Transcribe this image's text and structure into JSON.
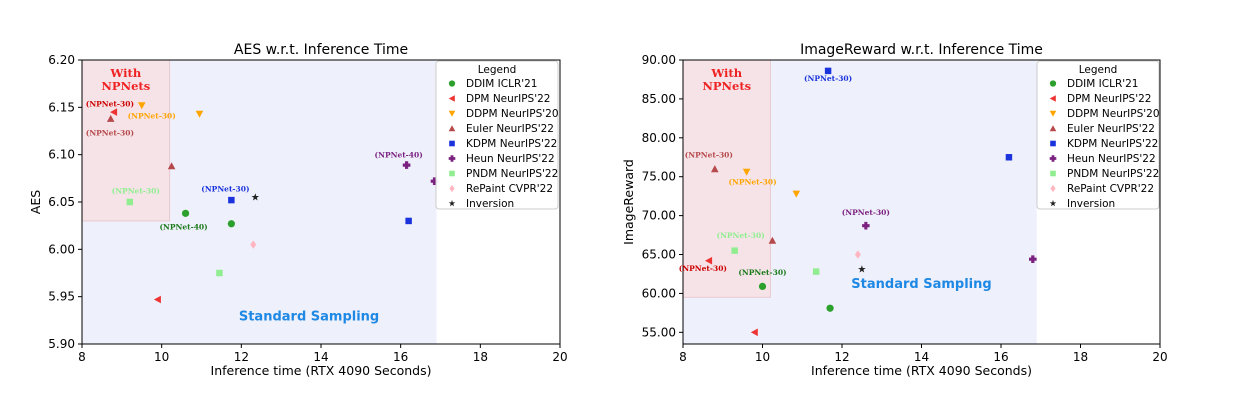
{
  "chart_data": [
    {
      "type": "scatter",
      "title": "AES w.r.t. Inference Time",
      "xlabel": "Inference time (RTX 4090 Seconds)",
      "ylabel": "AES",
      "xlim": [
        8,
        20
      ],
      "ylim": [
        5.9,
        6.2
      ],
      "xticks": [
        8,
        10,
        12,
        14,
        16,
        18,
        20
      ],
      "xtick_labels": [
        "8",
        "10",
        "12",
        "14",
        "16",
        "18",
        "20"
      ],
      "yticks": [
        5.9,
        5.95,
        6.0,
        6.05,
        6.1,
        6.15,
        6.2
      ],
      "ytick_labels": [
        "5.90",
        "5.95",
        "6.00",
        "6.05",
        "6.10",
        "6.15",
        "6.20"
      ],
      "npnet_region": {
        "x": [
          8,
          10.2
        ],
        "y": [
          6.03,
          6.2
        ],
        "label": "With NPNets"
      },
      "standard_region": {
        "x": [
          8,
          16.9
        ],
        "y": [
          5.9,
          6.2
        ],
        "label": "Standard Sampling",
        "label_x": 13.7,
        "label_y": 5.925
      },
      "legend_title": "Legend",
      "series": [
        {
          "name": "DDIM ICLR'21",
          "marker": "circle",
          "color": "#2ca02c",
          "points": [
            {
              "x": 10.6,
              "y": 6.038
            },
            {
              "x": 11.75,
              "y": 6.027
            }
          ]
        },
        {
          "name": "DPM NeurIPS'22",
          "marker": "triangle-left",
          "color": "#ee3333",
          "points": [
            {
              "x": 9.9,
              "y": 5.947
            },
            {
              "x": 8.8,
              "y": 6.145
            }
          ]
        },
        {
          "name": "DDPM NeurIPS'20",
          "marker": "triangle-down",
          "color": "#ffa500",
          "points": [
            {
              "x": 10.95,
              "y": 6.143
            },
            {
              "x": 9.5,
              "y": 6.152
            }
          ]
        },
        {
          "name": "Euler NeurIPS'22",
          "marker": "triangle-up",
          "color": "#b5494b",
          "points": [
            {
              "x": 10.25,
              "y": 6.088
            },
            {
              "x": 8.72,
              "y": 6.138
            }
          ]
        },
        {
          "name": "KDPM NeurIPS'22",
          "marker": "square",
          "color": "#1a33dd",
          "points": [
            {
              "x": 16.2,
              "y": 6.03
            },
            {
              "x": 11.75,
              "y": 6.052
            }
          ]
        },
        {
          "name": "Heun NeurIPS'22",
          "marker": "plus",
          "color": "#7b2180",
          "points": [
            {
              "x": 16.85,
              "y": 6.072
            },
            {
              "x": 16.15,
              "y": 6.089
            }
          ]
        },
        {
          "name": "PNDM NeurIPS'22",
          "marker": "square",
          "color": "#90ee90",
          "points": [
            {
              "x": 11.45,
              "y": 5.975
            },
            {
              "x": 9.2,
              "y": 6.05
            }
          ]
        },
        {
          "name": "RePaint CVPR'22",
          "marker": "diamond",
          "color": "#ffb6c1",
          "points": [
            {
              "x": 12.3,
              "y": 6.005
            }
          ]
        },
        {
          "name": "Inversion",
          "marker": "star",
          "color": "#222222",
          "points": [
            {
              "x": 12.35,
              "y": 6.055
            }
          ]
        }
      ],
      "annotations": [
        {
          "text": "(NPNet-30)",
          "x": 8.7,
          "y": 6.151,
          "color": "#cc0000"
        },
        {
          "text": "(NPNet-30)",
          "x": 8.7,
          "y": 6.12,
          "color": "#b5494b"
        },
        {
          "text": "(NPNet-30)",
          "x": 9.75,
          "y": 6.138,
          "color": "#ffa500"
        },
        {
          "text": "(NPNet-30)",
          "x": 9.35,
          "y": 6.059,
          "color": "#90ee90"
        },
        {
          "text": "(NPNet-30)",
          "x": 11.6,
          "y": 6.061,
          "color": "#1a33dd"
        },
        {
          "text": "(NPNet-40)",
          "x": 10.55,
          "y": 6.021,
          "color": "#1a7a1a"
        },
        {
          "text": "(NPNet-40)",
          "x": 15.95,
          "y": 6.097,
          "color": "#7b2180"
        }
      ]
    },
    {
      "type": "scatter",
      "title": "ImageReward w.r.t. Inference Time",
      "xlabel": "Inference time (RTX 4090 Seconds)",
      "ylabel": "ImageReward",
      "xlim": [
        8,
        20
      ],
      "ylim": [
        53.5,
        90
      ],
      "xticks": [
        8,
        10,
        12,
        14,
        16,
        18,
        20
      ],
      "xtick_labels": [
        "8",
        "10",
        "12",
        "14",
        "16",
        "18",
        "20"
      ],
      "yticks": [
        55,
        60,
        65,
        70,
        75,
        80,
        85,
        90
      ],
      "ytick_labels": [
        "55.00",
        "60.00",
        "65.00",
        "70.00",
        "75.00",
        "80.00",
        "85.00",
        "90.00"
      ],
      "npnet_region": {
        "x": [
          8,
          10.2
        ],
        "y": [
          59.5,
          90
        ],
        "label": "With NPNets"
      },
      "standard_region": {
        "x": [
          8,
          16.9
        ],
        "y": [
          53.5,
          90
        ],
        "label": "Standard Sampling",
        "label_x": 14.0,
        "label_y": 60.7
      },
      "legend_title": "Legend",
      "series": [
        {
          "name": "DDIM ICLR'21",
          "marker": "circle",
          "color": "#2ca02c",
          "points": [
            {
              "x": 11.7,
              "y": 58.1
            },
            {
              "x": 10.0,
              "y": 60.9
            }
          ]
        },
        {
          "name": "DPM NeurIPS'22",
          "marker": "triangle-left",
          "color": "#ee3333",
          "points": [
            {
              "x": 9.8,
              "y": 55.0
            },
            {
              "x": 8.65,
              "y": 64.2
            }
          ]
        },
        {
          "name": "DDPM NeurIPS'20",
          "marker": "triangle-down",
          "color": "#ffa500",
          "points": [
            {
              "x": 10.85,
              "y": 72.8
            },
            {
              "x": 9.6,
              "y": 75.6
            }
          ]
        },
        {
          "name": "Euler NeurIPS'22",
          "marker": "triangle-up",
          "color": "#b5494b",
          "points": [
            {
              "x": 10.25,
              "y": 66.8
            },
            {
              "x": 8.8,
              "y": 76.0
            }
          ]
        },
        {
          "name": "KDPM NeurIPS'22",
          "marker": "square",
          "color": "#1a33dd",
          "points": [
            {
              "x": 16.2,
              "y": 77.5
            },
            {
              "x": 11.65,
              "y": 88.6
            }
          ]
        },
        {
          "name": "Heun NeurIPS'22",
          "marker": "plus",
          "color": "#7b2180",
          "points": [
            {
              "x": 16.8,
              "y": 64.4
            },
            {
              "x": 12.6,
              "y": 68.7
            }
          ]
        },
        {
          "name": "PNDM NeurIPS'22",
          "marker": "square",
          "color": "#90ee90",
          "points": [
            {
              "x": 11.35,
              "y": 62.8
            },
            {
              "x": 9.3,
              "y": 65.5
            }
          ]
        },
        {
          "name": "RePaint CVPR'22",
          "marker": "diamond",
          "color": "#ffb6c1",
          "points": [
            {
              "x": 12.4,
              "y": 65.0
            }
          ]
        },
        {
          "name": "Inversion",
          "marker": "star",
          "color": "#222222",
          "points": [
            {
              "x": 12.5,
              "y": 63.1
            }
          ]
        }
      ],
      "annotations": [
        {
          "text": "(NPNet-30)",
          "x": 11.65,
          "y": 87.3,
          "color": "#1a33dd"
        },
        {
          "text": "(NPNet-30)",
          "x": 8.65,
          "y": 77.5,
          "color": "#b5494b"
        },
        {
          "text": "(NPNet-30)",
          "x": 9.75,
          "y": 74.0,
          "color": "#ffa500"
        },
        {
          "text": "(NPNet-30)",
          "x": 12.6,
          "y": 70.1,
          "color": "#7b2180"
        },
        {
          "text": "(NPNet-30)",
          "x": 9.45,
          "y": 67.1,
          "color": "#90ee90"
        },
        {
          "text": "(NPNet-30)",
          "x": 8.5,
          "y": 62.9,
          "color": "#cc0000"
        },
        {
          "text": "(NPNet-30)",
          "x": 10.0,
          "y": 62.4,
          "color": "#1a7a1a"
        }
      ]
    }
  ]
}
